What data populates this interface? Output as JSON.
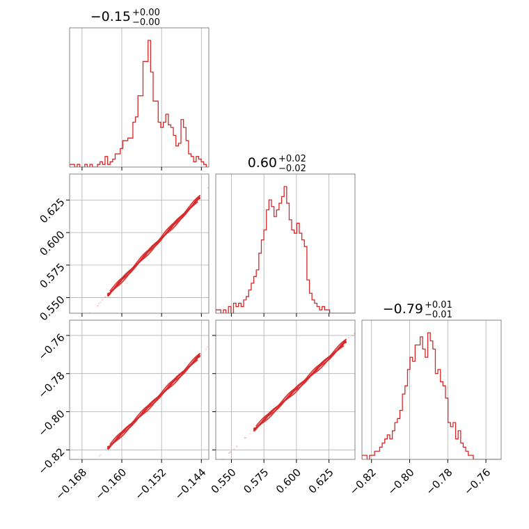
{
  "chart_data": {
    "type": "corner",
    "line_color": "#d62728",
    "parameters": [
      {
        "median": "−0.15",
        "plus": "+0.00",
        "minus": "−0.00",
        "range": [
          -0.1705,
          -0.1425
        ]
      },
      {
        "median": "0.60",
        "plus": "+0.02",
        "minus": "−0.02",
        "range": [
          0.538,
          0.645
        ]
      },
      {
        "median": "−0.79",
        "plus": "+0.01",
        "minus": "−0.01",
        "range": [
          -0.825,
          -0.752
        ]
      }
    ],
    "ticks": [
      {
        "values": [
          -0.168,
          -0.16,
          -0.152,
          -0.144
        ],
        "labels": [
          "−0.168",
          "−0.160",
          "−0.152",
          "−0.144"
        ]
      },
      {
        "values": [
          0.55,
          0.575,
          0.6,
          0.625
        ],
        "labels": [
          "0.550",
          "0.575",
          "0.600",
          "0.625"
        ]
      },
      {
        "values": [
          -0.82,
          -0.8,
          -0.78,
          -0.76
        ],
        "labels": [
          "−0.82",
          "−0.80",
          "−0.78",
          "−0.76"
        ]
      }
    ],
    "histograms": [
      {
        "bins": 55,
        "counts": [
          1,
          1,
          0,
          1,
          0,
          0,
          1,
          0,
          1,
          0,
          0,
          1,
          2,
          1,
          4,
          1,
          2,
          3,
          5,
          5,
          7,
          10,
          10,
          11,
          11,
          17,
          19,
          27,
          27,
          40,
          40,
          48,
          36,
          25,
          25,
          17,
          15,
          17,
          20,
          16,
          15,
          12,
          8,
          9,
          18,
          15,
          10,
          5,
          4,
          2,
          4,
          3,
          2,
          1,
          0
        ]
      },
      {
        "bins": 55,
        "counts": [
          1,
          1,
          0,
          1,
          0,
          2,
          0,
          3,
          2,
          3,
          2,
          4,
          5,
          7,
          9,
          11,
          13,
          18,
          22,
          25,
          31,
          34,
          32,
          29,
          31,
          33,
          35,
          38,
          33,
          28,
          25,
          24,
          27,
          24,
          22,
          20,
          10,
          6,
          4,
          3,
          2,
          1,
          2,
          1,
          1,
          0,
          0,
          0,
          0,
          0,
          0,
          0,
          0,
          0,
          0
        ]
      },
      {
        "bins": 55,
        "counts": [
          1,
          1,
          0,
          1,
          1,
          2,
          2,
          3,
          4,
          5,
          6,
          5,
          7,
          9,
          10,
          12,
          16,
          18,
          22,
          25,
          24,
          28,
          28,
          30,
          27,
          25,
          31,
          29,
          27,
          21,
          22,
          19,
          18,
          15,
          9,
          8,
          9,
          5,
          7,
          4,
          3,
          2,
          1,
          1,
          0,
          0,
          0,
          0,
          0,
          0,
          0,
          0,
          0,
          0,
          0
        ]
      }
    ],
    "grid": true
  }
}
